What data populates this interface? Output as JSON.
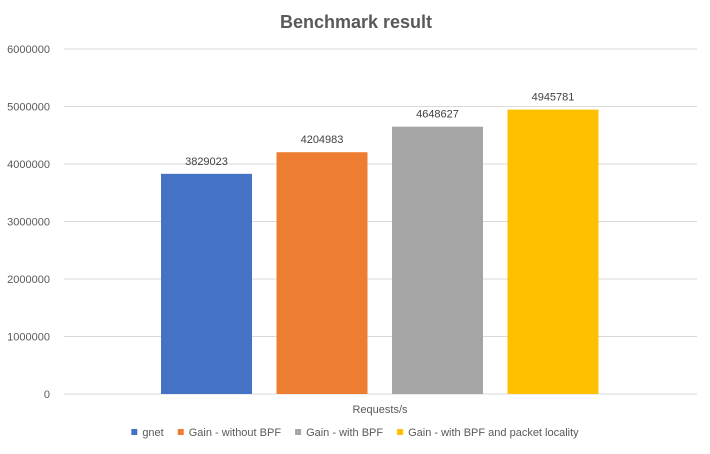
{
  "chart_data": {
    "type": "bar",
    "title": "Benchmark result",
    "xlabel": "Requests/s",
    "ylabel": "",
    "ylim": [
      0,
      6000000
    ],
    "yticks": [
      0,
      1000000,
      2000000,
      3000000,
      4000000,
      5000000,
      6000000
    ],
    "ytick_labels": [
      "0",
      "1000000",
      "2000000",
      "3000000",
      "4000000",
      "5000000",
      "6000000"
    ],
    "grid": true,
    "legend_position": "bottom",
    "series": [
      {
        "name": "gnet",
        "value": 3829023,
        "label": "3829023",
        "color": "#4472c4"
      },
      {
        "name": "Gain - without BPF",
        "value": 4204983,
        "label": "4204983",
        "color": "#ed7d31"
      },
      {
        "name": "Gain - with BPF",
        "value": 4648627,
        "label": "4648627",
        "color": "#a5a5a5"
      },
      {
        "name": "Gain - with BPF and packet locality",
        "value": 4945781,
        "label": "4945781",
        "color": "#ffc000"
      }
    ]
  }
}
